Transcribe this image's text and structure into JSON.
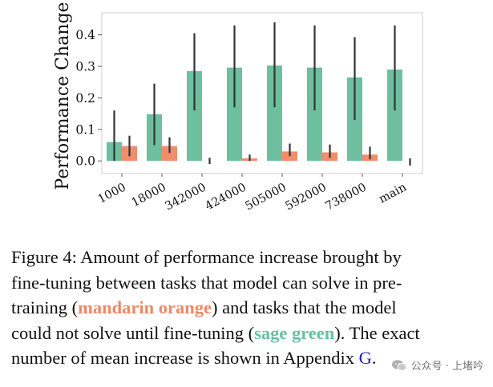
{
  "chart_data": {
    "type": "bar",
    "ylabel": "Performance Change",
    "xlabel": "",
    "ylim": [
      -0.04,
      0.47
    ],
    "yticks": [
      "0.0",
      "0.1",
      "0.2",
      "0.3",
      "0.4"
    ],
    "grid": false,
    "legend": "none",
    "categories": [
      "1000",
      "18000",
      "342000",
      "424000",
      "505000",
      "592000",
      "738000",
      "main"
    ],
    "series": [
      {
        "name": "sage green",
        "color": "#6dbf9f",
        "values": [
          0.06,
          0.148,
          0.285,
          0.296,
          0.303,
          0.296,
          0.265,
          0.29
        ],
        "error_low": [
          0.0,
          0.05,
          0.16,
          0.17,
          0.17,
          0.16,
          0.13,
          0.16
        ],
        "error_high": [
          0.16,
          0.245,
          0.405,
          0.43,
          0.44,
          0.43,
          0.393,
          0.43
        ]
      },
      {
        "name": "mandarin orange",
        "color": "#ef8d6c",
        "values": [
          0.047,
          0.047,
          0.0,
          0.008,
          0.03,
          0.027,
          0.02,
          0.0
        ],
        "error_low": [
          0.015,
          0.025,
          -0.01,
          0.0,
          0.015,
          0.01,
          0.005,
          -0.015
        ],
        "error_high": [
          0.08,
          0.075,
          0.01,
          0.02,
          0.055,
          0.052,
          0.045,
          0.008
        ]
      }
    ]
  },
  "caption": {
    "line1": "Figure 4: Amount of performance increase brought by",
    "line2": "fine-tuning between tasks that model can solve in pre-",
    "line3_before": "training (",
    "line3_orange": "mandarin orange",
    "line3_after": ") and tasks that the model",
    "line4_before": "could not solve until fine-tuning (",
    "line4_green": "sage green",
    "line4_after": "). The exact",
    "line5_before": "number of mean increase is shown in Appendix ",
    "line5_ref": "G",
    "line5_after": "."
  },
  "watermark": {
    "text": "公众号 · 上堵吟"
  }
}
